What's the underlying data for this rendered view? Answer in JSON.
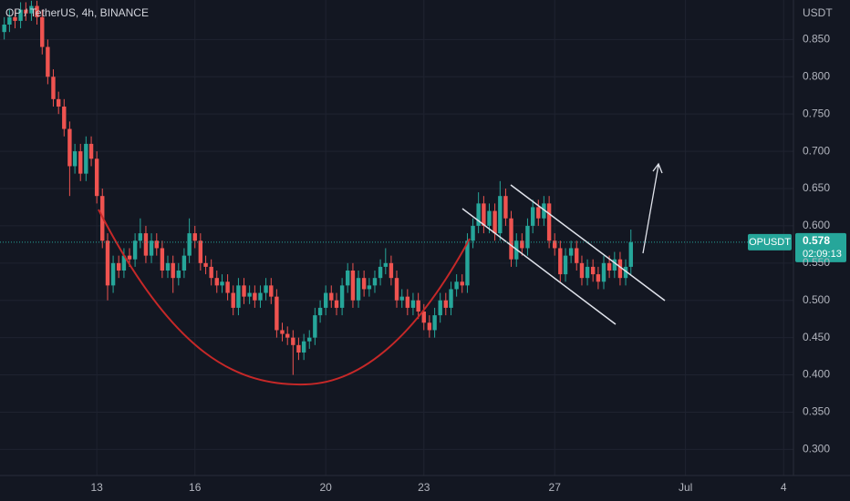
{
  "chart_data": {
    "type": "candlestick",
    "title": "OP / TetherUS, 4h, BINANCE",
    "currency": "USDT",
    "symbol": "OPUSDT",
    "countdown": "02:09:13",
    "up_color": "#26a69a",
    "down_color": "#ef5350",
    "grid": true,
    "xlim": [
      10.04,
      34.3
    ],
    "xticks": [
      13,
      16,
      20,
      23,
      27,
      {
        "value": 31,
        "label": "Jul"
      },
      {
        "value": 34,
        "label": "4"
      }
    ],
    "ylim": [
      0.265,
      0.903
    ],
    "yticks": [
      {
        "value": 0.3,
        "label": "0.300"
      },
      {
        "value": 0.35,
        "label": "0.350"
      },
      {
        "value": 0.4,
        "label": "0.400"
      },
      {
        "value": 0.45,
        "label": "0.450"
      },
      {
        "value": 0.5,
        "label": "0.500"
      },
      {
        "value": 0.55,
        "label": "0.550"
      },
      {
        "value": 0.6,
        "label": "0.600"
      },
      {
        "value": 0.65,
        "label": "0.650"
      },
      {
        "value": 0.7,
        "label": "0.700"
      },
      {
        "value": 0.75,
        "label": "0.750"
      },
      {
        "value": 0.8,
        "label": "0.800"
      },
      {
        "value": 0.85,
        "label": "0.850"
      }
    ],
    "x": [
      10.17,
      10.33,
      10.5,
      10.67,
      10.83,
      11,
      11.17,
      11.33,
      11.5,
      11.67,
      11.83,
      12,
      12.17,
      12.33,
      12.5,
      12.67,
      12.83,
      13,
      13.17,
      13.33,
      13.5,
      13.67,
      13.83,
      14,
      14.17,
      14.33,
      14.5,
      14.67,
      14.83,
      15,
      15.17,
      15.33,
      15.5,
      15.67,
      15.83,
      16,
      16.17,
      16.33,
      16.5,
      16.67,
      16.83,
      17,
      17.17,
      17.33,
      17.5,
      17.67,
      17.83,
      18,
      18.17,
      18.33,
      18.5,
      18.67,
      18.83,
      19,
      19.17,
      19.33,
      19.5,
      19.67,
      19.83,
      20,
      20.17,
      20.33,
      20.5,
      20.67,
      20.83,
      21,
      21.17,
      21.33,
      21.5,
      21.67,
      21.83,
      22,
      22.17,
      22.33,
      22.5,
      22.67,
      22.83,
      23,
      23.17,
      23.33,
      23.5,
      23.67,
      23.83,
      24,
      24.17,
      24.33,
      24.5,
      24.67,
      24.83,
      25,
      25.17,
      25.33,
      25.5,
      25.67,
      25.83,
      26,
      26.17,
      26.33,
      26.5,
      26.67,
      26.83,
      27,
      27.17,
      27.33,
      27.5,
      27.67,
      27.83,
      28,
      28.17,
      28.33,
      28.5,
      28.67,
      28.83,
      29,
      29.17,
      29.33
    ],
    "open": [
      0.86,
      0.87,
      0.88,
      0.875,
      0.89,
      0.885,
      0.895,
      0.88,
      0.84,
      0.8,
      0.77,
      0.76,
      0.73,
      0.68,
      0.7,
      0.67,
      0.71,
      0.69,
      0.64,
      0.58,
      0.52,
      0.55,
      0.54,
      0.56,
      0.555,
      0.58,
      0.59,
      0.56,
      0.58,
      0.57,
      0.54,
      0.55,
      0.53,
      0.54,
      0.56,
      0.59,
      0.58,
      0.55,
      0.545,
      0.53,
      0.52,
      0.525,
      0.51,
      0.49,
      0.52,
      0.505,
      0.51,
      0.5,
      0.51,
      0.52,
      0.505,
      0.46,
      0.455,
      0.45,
      0.44,
      0.43,
      0.445,
      0.45,
      0.48,
      0.49,
      0.51,
      0.5,
      0.49,
      0.52,
      0.54,
      0.5,
      0.53,
      0.515,
      0.52,
      0.53,
      0.545,
      0.55,
      0.53,
      0.5,
      0.505,
      0.49,
      0.5,
      0.485,
      0.47,
      0.46,
      0.48,
      0.5,
      0.49,
      0.515,
      0.525,
      0.52,
      0.58,
      0.6,
      0.63,
      0.6,
      0.62,
      0.59,
      0.64,
      0.61,
      0.555,
      0.58,
      0.57,
      0.6,
      0.625,
      0.61,
      0.63,
      0.58,
      0.57,
      0.535,
      0.56,
      0.57,
      0.55,
      0.53,
      0.545,
      0.535,
      0.525,
      0.55,
      0.54,
      0.555,
      0.53,
      0.545
    ],
    "high": [
      0.88,
      0.89,
      0.89,
      0.9,
      0.9,
      0.902,
      0.902,
      0.89,
      0.85,
      0.81,
      0.78,
      0.77,
      0.74,
      0.71,
      0.71,
      0.72,
      0.72,
      0.7,
      0.65,
      0.59,
      0.56,
      0.56,
      0.57,
      0.57,
      0.59,
      0.61,
      0.6,
      0.59,
      0.59,
      0.58,
      0.56,
      0.56,
      0.55,
      0.57,
      0.61,
      0.6,
      0.59,
      0.56,
      0.555,
      0.54,
      0.535,
      0.535,
      0.52,
      0.53,
      0.53,
      0.52,
      0.52,
      0.52,
      0.53,
      0.53,
      0.515,
      0.47,
      0.465,
      0.46,
      0.45,
      0.455,
      0.46,
      0.49,
      0.5,
      0.52,
      0.52,
      0.51,
      0.53,
      0.55,
      0.55,
      0.54,
      0.54,
      0.53,
      0.54,
      0.555,
      0.57,
      0.56,
      0.54,
      0.515,
      0.515,
      0.51,
      0.51,
      0.495,
      0.48,
      0.49,
      0.51,
      0.51,
      0.525,
      0.535,
      0.535,
      0.59,
      0.61,
      0.645,
      0.64,
      0.63,
      0.63,
      0.66,
      0.65,
      0.62,
      0.59,
      0.59,
      0.61,
      0.635,
      0.635,
      0.64,
      0.64,
      0.59,
      0.58,
      0.57,
      0.58,
      0.58,
      0.56,
      0.555,
      0.555,
      0.545,
      0.56,
      0.56,
      0.565,
      0.565,
      0.555,
      0.595
    ],
    "low": [
      0.85,
      0.86,
      0.865,
      0.865,
      0.875,
      0.875,
      0.87,
      0.83,
      0.79,
      0.76,
      0.75,
      0.72,
      0.64,
      0.67,
      0.66,
      0.66,
      0.68,
      0.63,
      0.57,
      0.5,
      0.51,
      0.53,
      0.53,
      0.545,
      0.545,
      0.57,
      0.55,
      0.55,
      0.56,
      0.53,
      0.53,
      0.51,
      0.52,
      0.53,
      0.55,
      0.57,
      0.54,
      0.535,
      0.52,
      0.51,
      0.51,
      0.5,
      0.48,
      0.48,
      0.495,
      0.495,
      0.49,
      0.49,
      0.5,
      0.495,
      0.45,
      0.445,
      0.44,
      0.4,
      0.42,
      0.42,
      0.435,
      0.44,
      0.47,
      0.48,
      0.49,
      0.48,
      0.48,
      0.51,
      0.49,
      0.49,
      0.505,
      0.505,
      0.51,
      0.52,
      0.535,
      0.52,
      0.49,
      0.49,
      0.48,
      0.48,
      0.475,
      0.46,
      0.45,
      0.45,
      0.47,
      0.48,
      0.48,
      0.505,
      0.51,
      0.51,
      0.57,
      0.59,
      0.59,
      0.59,
      0.58,
      0.58,
      0.6,
      0.545,
      0.545,
      0.56,
      0.56,
      0.59,
      0.6,
      0.6,
      0.57,
      0.56,
      0.525,
      0.525,
      0.55,
      0.54,
      0.52,
      0.52,
      0.525,
      0.515,
      0.515,
      0.53,
      0.53,
      0.52,
      0.52,
      0.535
    ],
    "close": [
      0.87,
      0.88,
      0.875,
      0.89,
      0.885,
      0.895,
      0.88,
      0.84,
      0.8,
      0.77,
      0.76,
      0.73,
      0.68,
      0.7,
      0.67,
      0.71,
      0.69,
      0.64,
      0.58,
      0.52,
      0.55,
      0.54,
      0.56,
      0.555,
      0.58,
      0.59,
      0.56,
      0.58,
      0.57,
      0.54,
      0.55,
      0.53,
      0.54,
      0.56,
      0.59,
      0.58,
      0.55,
      0.545,
      0.53,
      0.52,
      0.525,
      0.51,
      0.49,
      0.52,
      0.505,
      0.51,
      0.5,
      0.51,
      0.52,
      0.505,
      0.46,
      0.455,
      0.45,
      0.44,
      0.43,
      0.445,
      0.45,
      0.48,
      0.49,
      0.51,
      0.5,
      0.49,
      0.52,
      0.54,
      0.5,
      0.53,
      0.515,
      0.52,
      0.53,
      0.545,
      0.55,
      0.53,
      0.5,
      0.505,
      0.49,
      0.5,
      0.485,
      0.47,
      0.46,
      0.48,
      0.5,
      0.49,
      0.515,
      0.525,
      0.52,
      0.58,
      0.6,
      0.63,
      0.6,
      0.62,
      0.59,
      0.64,
      0.61,
      0.555,
      0.58,
      0.57,
      0.6,
      0.625,
      0.61,
      0.63,
      0.58,
      0.57,
      0.535,
      0.56,
      0.57,
      0.55,
      0.53,
      0.545,
      0.535,
      0.525,
      0.55,
      0.54,
      0.555,
      0.53,
      0.545,
      0.578
    ]
  }
}
